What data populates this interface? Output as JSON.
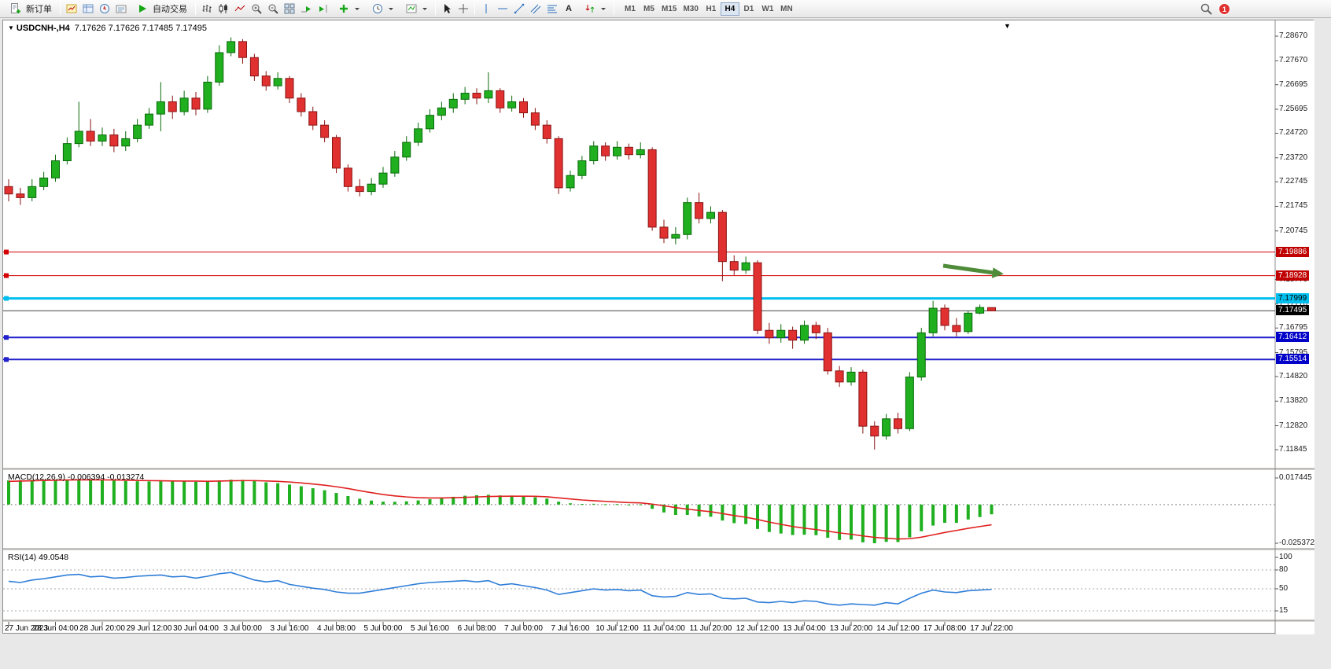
{
  "toolbar": {
    "new_order": "新订单",
    "autotrading": "自动交易",
    "timeframes": [
      "M1",
      "M5",
      "M15",
      "M30",
      "H1",
      "H4",
      "D1",
      "W1",
      "MN"
    ],
    "active_timeframe": "H4",
    "notification_count": "1"
  },
  "window": {
    "symbol_title": "USDCNH-,H4",
    "ohlc_text": "7.17626 7.17626 7.17485 7.17495",
    "dropdown_glyph": "▼"
  },
  "colors": {
    "candle_up": "#1FAF1F",
    "candle_up_border": "#0B6B0B",
    "candle_down": "#E03030",
    "candle_down_border": "#8B1414",
    "current_price_line": "#444444",
    "current_price_label_bg": "#000000"
  },
  "annotations": {
    "green_arrow": {
      "color": "#4E8C3A",
      "direction": "right"
    }
  },
  "chart_data": {
    "type": "candlestick",
    "symbol": "USDCNH-",
    "period": "H4",
    "current_price": "7.17495",
    "price_axis_labels": [
      "7.28670",
      "7.27670",
      "7.26695",
      "7.25695",
      "7.24720",
      "7.23720",
      "7.22745",
      "7.21745",
      "7.20745",
      "7.19770",
      "7.18770",
      "7.17770",
      "7.16795",
      "7.15795",
      "7.14820",
      "7.13820",
      "7.12820",
      "7.11845"
    ],
    "price_lines": [
      {
        "price": 7.19886,
        "label": "7.19886",
        "color": "#D40000",
        "width": 1,
        "label_bg": "#C00000",
        "label_fg": "#FFFFFF"
      },
      {
        "price": 7.18928,
        "label": "7.18928",
        "color": "#D40000",
        "width": 1,
        "label_bg": "#C00000",
        "label_fg": "#FFFFFF"
      },
      {
        "price": 7.17999,
        "label": "7.17999",
        "color": "#00BFEF",
        "width": 3,
        "label_bg": "#00BFEF",
        "label_fg": "#000000"
      },
      {
        "price": 7.16412,
        "label": "7.16412",
        "color": "#2020CC",
        "width": 2,
        "label_bg": "#0000C8",
        "label_fg": "#FFFFFF"
      },
      {
        "price": 7.15514,
        "label": "7.15514",
        "color": "#2020CC",
        "width": 2,
        "label_bg": "#0000C8",
        "label_fg": "#FFFFFF"
      }
    ],
    "candles": [
      [
        7.2255,
        7.2285,
        7.2195,
        7.2225
      ],
      [
        7.2225,
        7.225,
        7.218,
        7.221
      ],
      [
        7.221,
        7.2285,
        7.2195,
        7.2255
      ],
      [
        7.2255,
        7.2315,
        7.224,
        7.229
      ],
      [
        7.229,
        7.2385,
        7.2275,
        7.236
      ],
      [
        7.236,
        7.2455,
        7.2345,
        7.243
      ],
      [
        7.243,
        7.26,
        7.2415,
        7.248
      ],
      [
        7.248,
        7.253,
        7.242,
        7.244
      ],
      [
        7.244,
        7.2495,
        7.242,
        7.2465
      ],
      [
        7.2465,
        7.249,
        7.2395,
        7.242
      ],
      [
        7.242,
        7.248,
        7.24,
        7.245
      ],
      [
        7.245,
        7.253,
        7.2435,
        7.2505
      ],
      [
        7.2505,
        7.2575,
        7.249,
        7.255
      ],
      [
        7.255,
        7.268,
        7.248,
        7.26
      ],
      [
        7.26,
        7.2625,
        7.253,
        7.256
      ],
      [
        7.256,
        7.2645,
        7.2545,
        7.2615
      ],
      [
        7.2615,
        7.264,
        7.2545,
        7.257
      ],
      [
        7.257,
        7.2705,
        7.2555,
        7.268
      ],
      [
        7.268,
        7.283,
        7.2665,
        7.28
      ],
      [
        7.28,
        7.2862,
        7.2785,
        7.2845
      ],
      [
        7.2845,
        7.2855,
        7.2755,
        7.278
      ],
      [
        7.278,
        7.2795,
        7.2685,
        7.2705
      ],
      [
        7.2705,
        7.2725,
        7.2645,
        7.2665
      ],
      [
        7.2665,
        7.272,
        7.265,
        7.2695
      ],
      [
        7.2695,
        7.2705,
        7.2595,
        7.2615
      ],
      [
        7.2615,
        7.2635,
        7.254,
        7.256
      ],
      [
        7.256,
        7.258,
        7.2485,
        7.2505
      ],
      [
        7.2505,
        7.2525,
        7.2435,
        7.2455
      ],
      [
        7.2455,
        7.2465,
        7.231,
        7.233
      ],
      [
        7.233,
        7.2345,
        7.2235,
        7.2255
      ],
      [
        7.2255,
        7.2285,
        7.2215,
        7.2235
      ],
      [
        7.2235,
        7.229,
        7.222,
        7.2265
      ],
      [
        7.2265,
        7.2335,
        7.225,
        7.231
      ],
      [
        7.231,
        7.24,
        7.2295,
        7.2375
      ],
      [
        7.2375,
        7.246,
        7.236,
        7.2435
      ],
      [
        7.2435,
        7.2515,
        7.242,
        7.249
      ],
      [
        7.249,
        7.257,
        7.2475,
        7.2545
      ],
      [
        7.2545,
        7.26,
        7.2525,
        7.2575
      ],
      [
        7.2575,
        7.2635,
        7.2555,
        7.261
      ],
      [
        7.261,
        7.266,
        7.259,
        7.2635
      ],
      [
        7.2635,
        7.2655,
        7.259,
        7.2615
      ],
      [
        7.2615,
        7.272,
        7.2595,
        7.2645
      ],
      [
        7.2645,
        7.2655,
        7.2555,
        7.2575
      ],
      [
        7.2575,
        7.2625,
        7.256,
        7.26
      ],
      [
        7.26,
        7.2615,
        7.2535,
        7.2555
      ],
      [
        7.2555,
        7.2575,
        7.2485,
        7.2505
      ],
      [
        7.2505,
        7.2525,
        7.243,
        7.245
      ],
      [
        7.245,
        7.246,
        7.2225,
        7.225
      ],
      [
        7.225,
        7.232,
        7.2235,
        7.23
      ],
      [
        7.23,
        7.238,
        7.2285,
        7.236
      ],
      [
        7.236,
        7.244,
        7.2345,
        7.242
      ],
      [
        7.242,
        7.2435,
        7.236,
        7.238
      ],
      [
        7.238,
        7.244,
        7.2365,
        7.2415
      ],
      [
        7.2415,
        7.243,
        7.2365,
        7.2385
      ],
      [
        7.2385,
        7.2435,
        7.237,
        7.2405
      ],
      [
        7.2405,
        7.2415,
        7.2075,
        7.209
      ],
      [
        7.209,
        7.212,
        7.2025,
        7.2045
      ],
      [
        7.2045,
        7.209,
        7.202,
        7.206
      ],
      [
        7.206,
        7.221,
        7.204,
        7.219
      ],
      [
        7.219,
        7.223,
        7.2105,
        7.2125
      ],
      [
        7.2125,
        7.2175,
        7.2105,
        7.215
      ],
      [
        7.215,
        7.216,
        7.187,
        7.195
      ],
      [
        7.195,
        7.1975,
        7.1895,
        7.1915
      ],
      [
        7.1915,
        7.197,
        7.19,
        7.1945
      ],
      [
        7.1945,
        7.1955,
        7.1655,
        7.167
      ],
      [
        7.167,
        7.17,
        7.1615,
        7.164
      ],
      [
        7.164,
        7.1695,
        7.162,
        7.167
      ],
      [
        7.167,
        7.1685,
        7.1595,
        7.163
      ],
      [
        7.163,
        7.171,
        7.1615,
        7.169
      ],
      [
        7.169,
        7.1705,
        7.1635,
        7.166
      ],
      [
        7.166,
        7.168,
        7.149,
        7.1505
      ],
      [
        7.1505,
        7.1525,
        7.144,
        7.146
      ],
      [
        7.146,
        7.152,
        7.1445,
        7.15
      ],
      [
        7.15,
        7.151,
        7.125,
        7.128
      ],
      [
        7.128,
        7.13,
        7.1185,
        7.124
      ],
      [
        7.124,
        7.133,
        7.1225,
        7.131
      ],
      [
        7.131,
        7.1335,
        7.125,
        7.127
      ],
      [
        7.127,
        7.15,
        7.126,
        7.148
      ],
      [
        7.148,
        7.168,
        7.1465,
        7.166
      ],
      [
        7.166,
        7.179,
        7.1645,
        7.176
      ],
      [
        7.176,
        7.1775,
        7.167,
        7.169
      ],
      [
        7.169,
        7.172,
        7.1645,
        7.1665
      ],
      [
        7.1665,
        7.175,
        7.1655,
        7.174
      ],
      [
        7.174,
        7.1775,
        7.1735,
        7.1763
      ],
      [
        7.17626,
        7.17626,
        7.17485,
        7.17495
      ]
    ],
    "time_labels": [
      "27 Jun 2023",
      "28 Jun 04:00",
      "28 Jun 20:00",
      "29 Jun 12:00",
      "30 Jun 04:00",
      "3 Jul 00:00",
      "3 Jul 16:00",
      "4 Jul 08:00",
      "5 Jul 00:00",
      "5 Jul 16:00",
      "6 Jul 08:00",
      "7 Jul 00:00",
      "7 Jul 16:00",
      "10 Jul 12:00",
      "11 Jul 04:00",
      "11 Jul 20:00",
      "12 Jul 12:00",
      "13 Jul 04:00",
      "13 Jul 20:00",
      "14 Jul 12:00",
      "17 Jul 08:00",
      "17 Jul 22:00"
    ],
    "macd": {
      "label": "MACD(12,26,9)",
      "values_text": "-0.006394 -0.013274",
      "axis_labels": [
        "0.017445",
        "-0.025372"
      ],
      "histogram_color": "#1FAF1F",
      "signal_color": "#E02020",
      "histogram": [
        0.0158,
        0.016,
        0.0162,
        0.0163,
        0.0164,
        0.0165,
        0.0166,
        0.0164,
        0.0162,
        0.0158,
        0.0155,
        0.0153,
        0.0152,
        0.0153,
        0.0152,
        0.0152,
        0.015,
        0.0152,
        0.0158,
        0.0163,
        0.0162,
        0.0155,
        0.0146,
        0.014,
        0.0131,
        0.012,
        0.0107,
        0.0094,
        0.0076,
        0.0056,
        0.0038,
        0.0026,
        0.0019,
        0.0018,
        0.0021,
        0.0027,
        0.0035,
        0.0043,
        0.0051,
        0.0058,
        0.0061,
        0.0064,
        0.006,
        0.0059,
        0.0055,
        0.0048,
        0.0039,
        0.0019,
        0.0008,
        0.0004,
        0.0005,
        0.0002,
        0.0003,
        -0.0001,
        0.0001,
        -0.0028,
        -0.0052,
        -0.0068,
        -0.0068,
        -0.0078,
        -0.008,
        -0.0105,
        -0.0122,
        -0.0128,
        -0.016,
        -0.018,
        -0.019,
        -0.02,
        -0.0198,
        -0.0201,
        -0.0218,
        -0.0232,
        -0.023,
        -0.0248,
        -0.0254,
        -0.0245,
        -0.0246,
        -0.0215,
        -0.0175,
        -0.0138,
        -0.012,
        -0.012,
        -0.0098,
        -0.0082,
        -0.0064
      ],
      "signal": [
        0.0152,
        0.0154,
        0.0156,
        0.0158,
        0.0159,
        0.0161,
        0.0162,
        0.0162,
        0.0162,
        0.0161,
        0.016,
        0.0158,
        0.0157,
        0.0156,
        0.0155,
        0.0154,
        0.0154,
        0.0153,
        0.0154,
        0.0156,
        0.0157,
        0.0157,
        0.0155,
        0.0152,
        0.0148,
        0.0142,
        0.0135,
        0.0127,
        0.0117,
        0.0105,
        0.0091,
        0.0078,
        0.0066,
        0.0057,
        0.005,
        0.0045,
        0.0043,
        0.0043,
        0.0045,
        0.0047,
        0.005,
        0.0053,
        0.0054,
        0.0055,
        0.0055,
        0.0054,
        0.0051,
        0.0044,
        0.0037,
        0.003,
        0.0025,
        0.0021,
        0.0017,
        0.0013,
        0.0011,
        0.0003,
        -0.0008,
        -0.002,
        -0.003,
        -0.0039,
        -0.0047,
        -0.0059,
        -0.0072,
        -0.0083,
        -0.0098,
        -0.0115,
        -0.013,
        -0.0144,
        -0.0155,
        -0.0164,
        -0.0175,
        -0.0186,
        -0.0195,
        -0.0206,
        -0.0215,
        -0.0221,
        -0.0226,
        -0.0224,
        -0.0214,
        -0.0199,
        -0.0183,
        -0.017,
        -0.0156,
        -0.0144,
        -0.0133
      ]
    },
    "rsi": {
      "label": "RSI(14)",
      "value_text": "49.0548",
      "axis_labels": [
        "100",
        "80",
        "50",
        "15"
      ],
      "levels": [
        80,
        50,
        15
      ],
      "line_color": "#2F7ED8",
      "values": [
        62,
        60,
        64,
        66,
        69,
        72,
        73,
        69,
        70,
        67,
        68,
        70,
        71,
        72,
        69,
        70,
        67,
        70,
        74,
        76,
        70,
        64,
        61,
        63,
        57,
        54,
        51,
        49,
        45,
        43,
        43,
        46,
        49,
        52,
        55,
        58,
        60,
        61,
        62,
        63,
        61,
        63,
        56,
        58,
        55,
        52,
        48,
        41,
        44,
        47,
        50,
        48,
        49,
        47,
        48,
        39,
        37,
        38,
        44,
        41,
        42,
        35,
        34,
        35,
        29,
        28,
        30,
        28,
        31,
        30,
        26,
        24,
        26,
        25,
        24,
        28,
        26,
        35,
        43,
        48,
        45,
        44,
        47,
        48,
        49.05
      ]
    }
  }
}
